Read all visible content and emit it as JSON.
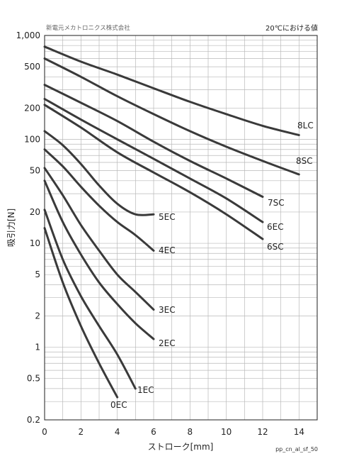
{
  "company": "新電元メカトロニクス株式会社",
  "condition": "20℃における値",
  "figure_code": "pp_cn_al_sf_50",
  "chart_data": {
    "type": "line",
    "xlabel": "ストローク[mm]",
    "ylabel": "吸引力[N]",
    "xlim": [
      0,
      15
    ],
    "ylim": [
      0.2,
      1000
    ],
    "y_scale": "log",
    "grid": true,
    "x_ticks": [
      0,
      2,
      4,
      6,
      8,
      10,
      12,
      14
    ],
    "y_ticks": [
      {
        "value": 0.2,
        "label": "0.2"
      },
      {
        "value": 0.5,
        "label": "0.5"
      },
      {
        "value": 1,
        "label": "1"
      },
      {
        "value": 2,
        "label": "2"
      },
      {
        "value": 5,
        "label": "5"
      },
      {
        "value": 10,
        "label": "10"
      },
      {
        "value": 20,
        "label": "20"
      },
      {
        "value": 50,
        "label": "50"
      },
      {
        "value": 100,
        "label": "100"
      },
      {
        "value": 200,
        "label": "200"
      },
      {
        "value": 500,
        "label": "500"
      },
      {
        "value": 1000,
        "label": "1,000"
      }
    ],
    "series": [
      {
        "name": "8LC",
        "x": [
          0,
          2,
          4,
          6,
          8,
          10,
          12,
          14
        ],
        "y": [
          780,
          560,
          420,
          310,
          230,
          175,
          135,
          110
        ]
      },
      {
        "name": "8SC",
        "x": [
          0,
          2,
          4,
          6,
          8,
          10,
          12,
          14
        ],
        "y": [
          600,
          400,
          260,
          175,
          120,
          85,
          62,
          46
        ]
      },
      {
        "name": "7SC",
        "x": [
          0,
          2,
          4,
          6,
          8,
          10,
          12
        ],
        "y": [
          335,
          225,
          150,
          95,
          62,
          42,
          28
        ]
      },
      {
        "name": "6EC",
        "x": [
          0,
          2,
          4,
          6,
          8,
          10,
          12
        ],
        "y": [
          245,
          155,
          100,
          65,
          42,
          27,
          16
        ]
      },
      {
        "name": "6SC",
        "x": [
          0,
          2,
          4,
          6,
          8,
          10,
          12
        ],
        "y": [
          215,
          130,
          75,
          48,
          31,
          19,
          11
        ]
      },
      {
        "name": "5EC",
        "x": [
          0,
          1,
          2,
          3,
          4,
          5,
          6
        ],
        "y": [
          120,
          88,
          58,
          36,
          24,
          19,
          19
        ]
      },
      {
        "name": "4EC",
        "x": [
          0,
          1,
          2,
          3,
          4,
          5,
          6
        ],
        "y": [
          80,
          55,
          35,
          23,
          16,
          12,
          8.5
        ]
      },
      {
        "name": "3EC",
        "x": [
          0,
          1,
          2,
          3,
          4,
          5,
          6
        ],
        "y": [
          53,
          29,
          15,
          8.5,
          5,
          3.4,
          2.3
        ]
      },
      {
        "name": "2EC",
        "x": [
          0,
          1,
          2,
          3,
          4,
          5,
          6
        ],
        "y": [
          40,
          16,
          7.8,
          4.2,
          2.6,
          1.7,
          1.2
        ]
      },
      {
        "name": "1EC",
        "x": [
          0,
          1,
          2,
          3,
          4,
          5
        ],
        "y": [
          21,
          7,
          3.1,
          1.6,
          0.85,
          0.4
        ]
      },
      {
        "name": "0EC",
        "x": [
          0,
          1,
          2,
          3,
          4
        ],
        "y": [
          14,
          4.2,
          1.6,
          0.7,
          0.33
        ]
      }
    ]
  }
}
